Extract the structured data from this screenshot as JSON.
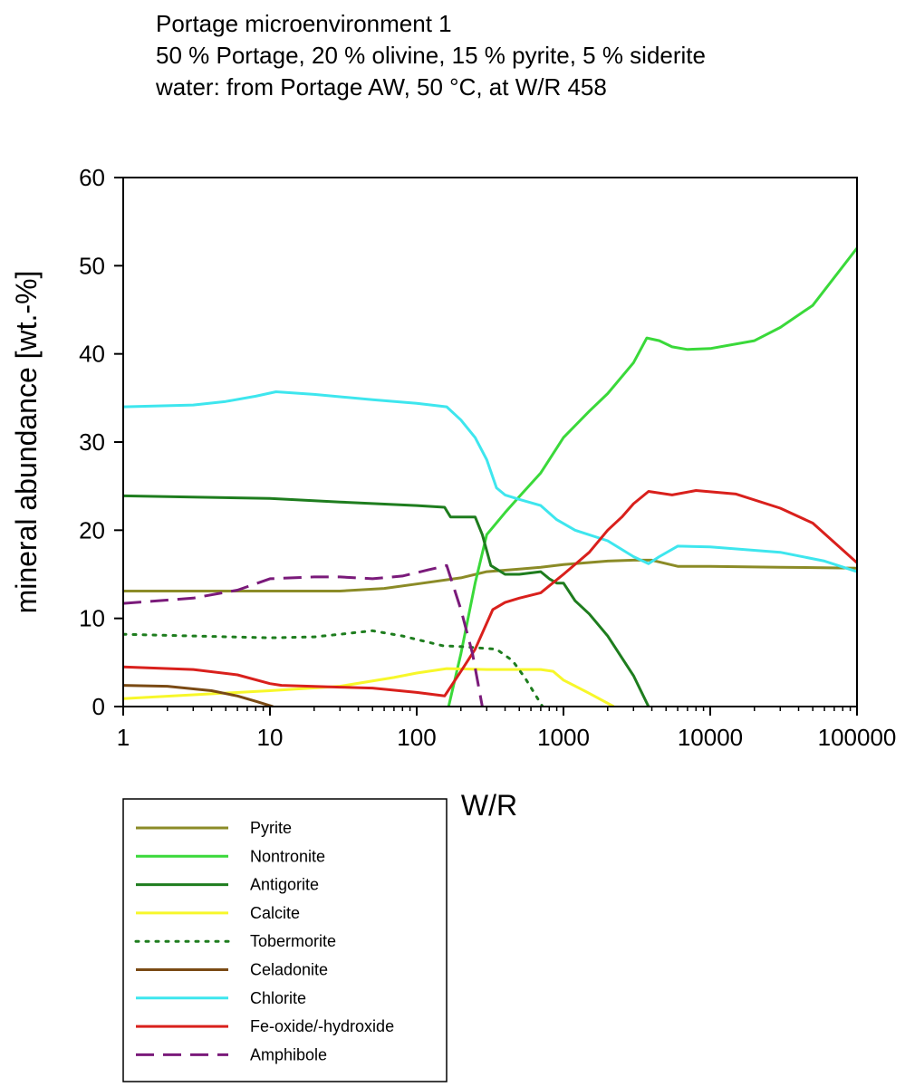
{
  "chart_data": {
    "type": "line",
    "title_lines": [
      "Portage microenvironment 1",
      "50 % Portage, 20 % olivine, 15 % pyrite, 5 % siderite",
      "water: from Portage AW, 50 °C, at W/R 458"
    ],
    "xlabel": "W/R",
    "ylabel": "mineral abundance [wt.-%]",
    "x_scale": "log",
    "xlim": [
      1,
      100000
    ],
    "ylim": [
      0,
      60
    ],
    "x_ticks": [
      1,
      10,
      100,
      1000,
      10000,
      100000
    ],
    "x_tick_labels": [
      "1",
      "10",
      "100",
      "1000",
      "10000",
      "100000"
    ],
    "y_ticks": [
      0,
      10,
      20,
      30,
      40,
      50,
      60
    ],
    "y_tick_labels": [
      "0",
      "10",
      "20",
      "30",
      "40",
      "50",
      "60"
    ],
    "grid": false,
    "legend_position": "below-left",
    "series": [
      {
        "name": "Pyrite",
        "color": "#8b8b27",
        "dash": "solid",
        "points": [
          [
            1,
            13.1
          ],
          [
            10,
            13.1
          ],
          [
            30,
            13.1
          ],
          [
            60,
            13.4
          ],
          [
            100,
            13.9
          ],
          [
            200,
            14.6
          ],
          [
            300,
            15.3
          ],
          [
            500,
            15.6
          ],
          [
            700,
            15.8
          ],
          [
            1000,
            16.1
          ],
          [
            2000,
            16.5
          ],
          [
            3000,
            16.6
          ],
          [
            4000,
            16.6
          ],
          [
            6000,
            15.9
          ],
          [
            10000,
            15.9
          ],
          [
            30000,
            15.8
          ],
          [
            100000,
            15.7
          ]
        ]
      },
      {
        "name": "Nontronite",
        "color": "#3ad93a",
        "dash": "solid",
        "points": [
          [
            165,
            0
          ],
          [
            200,
            6
          ],
          [
            250,
            14
          ],
          [
            300,
            19.5
          ],
          [
            400,
            22
          ],
          [
            500,
            23.8
          ],
          [
            700,
            26.5
          ],
          [
            1000,
            30.5
          ],
          [
            1500,
            33.5
          ],
          [
            2000,
            35.5
          ],
          [
            3000,
            39
          ],
          [
            3700,
            41.8
          ],
          [
            4500,
            41.5
          ],
          [
            5500,
            40.8
          ],
          [
            7000,
            40.5
          ],
          [
            10000,
            40.6
          ],
          [
            20000,
            41.5
          ],
          [
            30000,
            43
          ],
          [
            50000,
            45.5
          ],
          [
            100000,
            52
          ]
        ]
      },
      {
        "name": "Antigorite",
        "color": "#1e7d1e",
        "dash": "solid",
        "points": [
          [
            1,
            23.9
          ],
          [
            10,
            23.6
          ],
          [
            30,
            23.2
          ],
          [
            100,
            22.8
          ],
          [
            155,
            22.6
          ],
          [
            160,
            22.2
          ],
          [
            170,
            21.5
          ],
          [
            250,
            21.5
          ],
          [
            280,
            19.5
          ],
          [
            320,
            16
          ],
          [
            400,
            15
          ],
          [
            500,
            15
          ],
          [
            700,
            15.3
          ],
          [
            800,
            14.5
          ],
          [
            900,
            14
          ],
          [
            1000,
            14
          ],
          [
            1200,
            12
          ],
          [
            1500,
            10.5
          ],
          [
            2000,
            8
          ],
          [
            3000,
            3.5
          ],
          [
            3800,
            0
          ]
        ]
      },
      {
        "name": "Calcite",
        "color": "#f7f72a",
        "dash": "solid",
        "points": [
          [
            1,
            0.9
          ],
          [
            10,
            1.8
          ],
          [
            30,
            2.3
          ],
          [
            70,
            3.3
          ],
          [
            100,
            3.8
          ],
          [
            160,
            4.3
          ],
          [
            300,
            4.2
          ],
          [
            500,
            4.2
          ],
          [
            700,
            4.2
          ],
          [
            850,
            4
          ],
          [
            1000,
            3
          ],
          [
            1500,
            1.5
          ],
          [
            2200,
            0
          ]
        ]
      },
      {
        "name": "Tobermorite",
        "color": "#1e7d1e",
        "dash": "dotted",
        "points": [
          [
            1,
            8.2
          ],
          [
            3,
            8
          ],
          [
            10,
            7.8
          ],
          [
            20,
            7.9
          ],
          [
            30,
            8.2
          ],
          [
            50,
            8.6
          ],
          [
            80,
            8
          ],
          [
            150,
            6.9
          ],
          [
            200,
            6.8
          ],
          [
            350,
            6.5
          ],
          [
            450,
            5.2
          ],
          [
            550,
            3.2
          ],
          [
            720,
            0
          ]
        ]
      },
      {
        "name": "Celadonite",
        "color": "#7a4a14",
        "dash": "solid",
        "points": [
          [
            1,
            2.4
          ],
          [
            2,
            2.3
          ],
          [
            4,
            1.8
          ],
          [
            6,
            1.2
          ],
          [
            8,
            0.6
          ],
          [
            10.5,
            0
          ]
        ]
      },
      {
        "name": "Chlorite",
        "color": "#3ee6ee",
        "dash": "solid",
        "points": [
          [
            1,
            34
          ],
          [
            3,
            34.2
          ],
          [
            5,
            34.6
          ],
          [
            8,
            35.2
          ],
          [
            11,
            35.7
          ],
          [
            20,
            35.4
          ],
          [
            50,
            34.8
          ],
          [
            100,
            34.4
          ],
          [
            160,
            34
          ],
          [
            200,
            32.5
          ],
          [
            250,
            30.5
          ],
          [
            300,
            28
          ],
          [
            350,
            24.8
          ],
          [
            400,
            24
          ],
          [
            500,
            23.5
          ],
          [
            700,
            22.8
          ],
          [
            900,
            21.2
          ],
          [
            1200,
            20
          ],
          [
            2000,
            18.8
          ],
          [
            3000,
            17
          ],
          [
            3800,
            16.2
          ],
          [
            4500,
            17
          ],
          [
            6000,
            18.2
          ],
          [
            10000,
            18.1
          ],
          [
            30000,
            17.5
          ],
          [
            60000,
            16.5
          ],
          [
            100000,
            15.3
          ]
        ]
      },
      {
        "name": "Fe-oxide/-hydroxide",
        "color": "#d9201c",
        "dash": "solid",
        "points": [
          [
            1,
            4.5
          ],
          [
            3,
            4.2
          ],
          [
            6,
            3.6
          ],
          [
            10,
            2.6
          ],
          [
            12,
            2.4
          ],
          [
            30,
            2.2
          ],
          [
            50,
            2.1
          ],
          [
            100,
            1.6
          ],
          [
            155,
            1.2
          ],
          [
            200,
            4
          ],
          [
            250,
            6.5
          ],
          [
            330,
            11
          ],
          [
            400,
            11.8
          ],
          [
            500,
            12.3
          ],
          [
            700,
            12.9
          ],
          [
            1000,
            15
          ],
          [
            1500,
            17.5
          ],
          [
            2000,
            20
          ],
          [
            2500,
            21.5
          ],
          [
            3000,
            23
          ],
          [
            3800,
            24.4
          ],
          [
            5500,
            24
          ],
          [
            8000,
            24.5
          ],
          [
            15000,
            24.1
          ],
          [
            30000,
            22.5
          ],
          [
            50000,
            20.8
          ],
          [
            100000,
            16.3
          ]
        ]
      },
      {
        "name": "Amphibole",
        "color": "#7a1a7a",
        "dash": "dashed",
        "points": [
          [
            1,
            11.7
          ],
          [
            3,
            12.3
          ],
          [
            6,
            13.2
          ],
          [
            10,
            14.5
          ],
          [
            20,
            14.7
          ],
          [
            30,
            14.7
          ],
          [
            50,
            14.5
          ],
          [
            80,
            14.8
          ],
          [
            120,
            15.5
          ],
          [
            160,
            16
          ],
          [
            200,
            11
          ],
          [
            240,
            6
          ],
          [
            280,
            0
          ]
        ]
      }
    ]
  }
}
